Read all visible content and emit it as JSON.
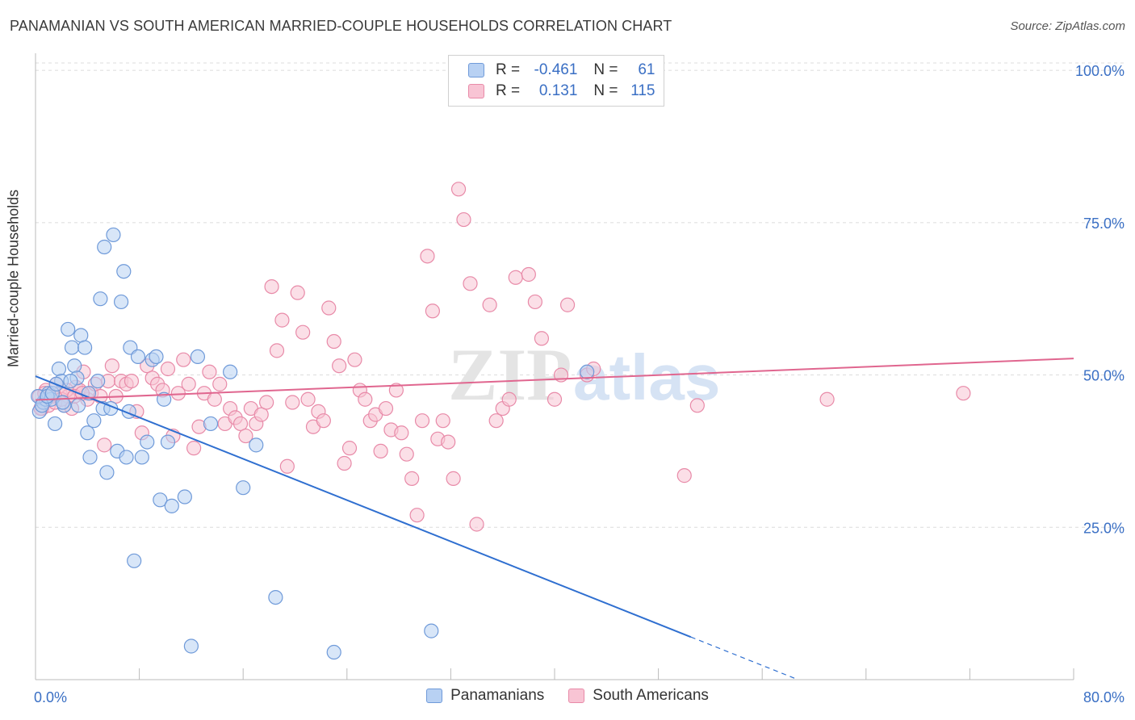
{
  "title": "PANAMANIAN VS SOUTH AMERICAN MARRIED-COUPLE HOUSEHOLDS CORRELATION CHART",
  "source": "Source: ZipAtlas.com",
  "watermark": {
    "zip": "ZIP",
    "atlas": "atlas"
  },
  "legend": {
    "rows": [
      {
        "r_label": "R =",
        "r_value": "-0.461",
        "n_label": "N =",
        "n_value": "61",
        "fill": "#b8d1f3",
        "stroke": "#6f9ad9"
      },
      {
        "r_label": "R =",
        "r_value": "0.131",
        "n_label": "N =",
        "n_value": "115",
        "fill": "#f8c4d4",
        "stroke": "#e88aa8"
      }
    ]
  },
  "bottom_legend": [
    {
      "label": "Panamanians",
      "fill": "#b8d1f3",
      "stroke": "#6f9ad9"
    },
    {
      "label": "South Americans",
      "fill": "#f8c4d4",
      "stroke": "#e88aa8"
    }
  ],
  "chart_data": {
    "type": "scatter",
    "title": "PANAMANIAN VS SOUTH AMERICAN MARRIED-COUPLE HOUSEHOLDS CORRELATION CHART",
    "xlabel": "",
    "ylabel": "Married-couple Households",
    "xlim": [
      0,
      80
    ],
    "ylim": [
      0,
      102
    ],
    "x_tick_labels": [
      "0.0%",
      "80.0%"
    ],
    "y_ticks": [
      25,
      50,
      75,
      100
    ],
    "y_tick_labels": [
      "25.0%",
      "50.0%",
      "75.0%",
      "100.0%"
    ],
    "grid": true,
    "legend_position": "top-center",
    "series": [
      {
        "name": "Panamanians",
        "color": "#6f9ad9",
        "fill": "#b8d1f3",
        "line_color": "#2f6fd0",
        "trend": {
          "x0": 0,
          "y0": 49.8,
          "x1": 50.5,
          "y1": 7.0,
          "dash_to_x": 58.5
        },
        "x": [
          0.3,
          0.6,
          0.8,
          1.0,
          1.2,
          1.5,
          1.8,
          2.0,
          2.2,
          2.5,
          2.8,
          3.0,
          3.2,
          3.5,
          3.8,
          4.0,
          4.2,
          4.5,
          4.8,
          5.0,
          5.2,
          5.5,
          5.8,
          6.0,
          6.3,
          6.6,
          7.0,
          7.3,
          7.6,
          7.9,
          8.2,
          8.6,
          9.0,
          9.3,
          9.6,
          9.9,
          10.2,
          10.5,
          11.5,
          12.0,
          12.5,
          13.5,
          15.0,
          16.0,
          17.0,
          18.5,
          23.0,
          30.5,
          42.5,
          0.2,
          0.5,
          0.9,
          1.3,
          1.6,
          2.1,
          2.7,
          3.3,
          4.1,
          5.3,
          6.8,
          7.2
        ],
        "y": [
          44.0,
          45.5,
          46.0,
          47.0,
          46.0,
          42.0,
          51.0,
          49.0,
          45.0,
          57.5,
          54.5,
          51.5,
          49.5,
          56.5,
          54.5,
          40.5,
          36.5,
          42.5,
          49.0,
          62.5,
          44.5,
          34.0,
          44.5,
          73.0,
          37.5,
          62.0,
          36.5,
          54.5,
          19.5,
          53.0,
          36.5,
          39.0,
          52.5,
          53.0,
          29.5,
          46.0,
          39.0,
          28.5,
          30.0,
          5.5,
          53.0,
          42.0,
          50.5,
          31.5,
          38.5,
          13.5,
          4.5,
          8.0,
          50.5,
          46.5,
          45.0,
          46.5,
          47.0,
          48.5,
          45.5,
          49.0,
          45.0,
          47.0,
          71.0,
          67.0,
          44.0
        ]
      },
      {
        "name": "South Americans",
        "color": "#e88aa8",
        "fill": "#f8c4d4",
        "line_color": "#e0668f",
        "trend": {
          "x0": 0,
          "y0": 45.9,
          "x1": 80,
          "y1": 52.7
        },
        "x": [
          0.3,
          0.5,
          0.8,
          1.0,
          1.3,
          1.6,
          1.9,
          2.2,
          2.5,
          2.8,
          3.1,
          3.4,
          3.7,
          4.0,
          4.3,
          4.6,
          5.0,
          5.3,
          5.6,
          5.9,
          6.2,
          6.6,
          7.0,
          7.4,
          7.8,
          8.2,
          8.6,
          9.0,
          9.4,
          9.8,
          10.2,
          10.6,
          11.0,
          11.4,
          11.8,
          12.2,
          12.6,
          13.0,
          13.4,
          13.8,
          14.2,
          14.6,
          15.0,
          15.4,
          15.8,
          16.2,
          16.6,
          17.0,
          17.4,
          17.8,
          18.2,
          18.6,
          19.0,
          19.4,
          19.8,
          20.2,
          20.6,
          21.0,
          21.4,
          21.8,
          22.2,
          22.6,
          23.0,
          23.4,
          23.8,
          24.2,
          24.6,
          25.0,
          25.4,
          25.8,
          26.2,
          26.6,
          27.0,
          27.4,
          27.8,
          28.2,
          28.6,
          29.0,
          29.4,
          29.8,
          30.2,
          30.6,
          31.0,
          31.4,
          31.8,
          32.2,
          32.6,
          33.0,
          33.5,
          34.0,
          35.0,
          35.5,
          36.0,
          36.5,
          37.0,
          38.0,
          38.5,
          39.0,
          40.0,
          40.5,
          41.0,
          42.5,
          43.0,
          50.0,
          51.0,
          61.0,
          71.5,
          0.4,
          0.7,
          1.1,
          1.5,
          2.0,
          2.4,
          3.0,
          3.6
        ],
        "y": [
          46.5,
          44.5,
          47.5,
          45.0,
          46.5,
          48.5,
          47.0,
          45.0,
          46.5,
          44.5,
          48.0,
          47.5,
          50.5,
          46.0,
          47.0,
          48.5,
          46.5,
          38.5,
          49.0,
          51.5,
          46.5,
          49.0,
          48.5,
          49.0,
          44.0,
          40.5,
          51.5,
          49.5,
          48.5,
          47.5,
          51.0,
          40.0,
          47.0,
          52.5,
          48.5,
          38.0,
          41.5,
          47.0,
          50.5,
          46.0,
          48.5,
          42.0,
          44.5,
          43.0,
          42.0,
          40.0,
          44.5,
          42.0,
          43.5,
          45.5,
          64.5,
          54.0,
          59.0,
          35.0,
          45.5,
          63.5,
          57.0,
          46.0,
          41.5,
          44.0,
          42.5,
          61.0,
          55.5,
          51.5,
          35.5,
          38.0,
          52.5,
          47.5,
          46.0,
          42.5,
          43.5,
          37.5,
          44.5,
          41.0,
          47.5,
          40.5,
          37.0,
          33.0,
          27.0,
          42.5,
          69.5,
          60.5,
          39.5,
          42.5,
          39.0,
          33.0,
          80.5,
          75.5,
          65.0,
          25.5,
          61.5,
          42.5,
          44.5,
          46.0,
          66.0,
          66.5,
          62.0,
          56.0,
          46.0,
          50.0,
          61.5,
          50.0,
          51.0,
          33.5,
          45.0,
          46.0,
          47.0,
          44.5,
          47.0,
          46.5,
          45.5,
          46.0,
          47.5,
          46.5,
          47.0
        ]
      }
    ]
  }
}
